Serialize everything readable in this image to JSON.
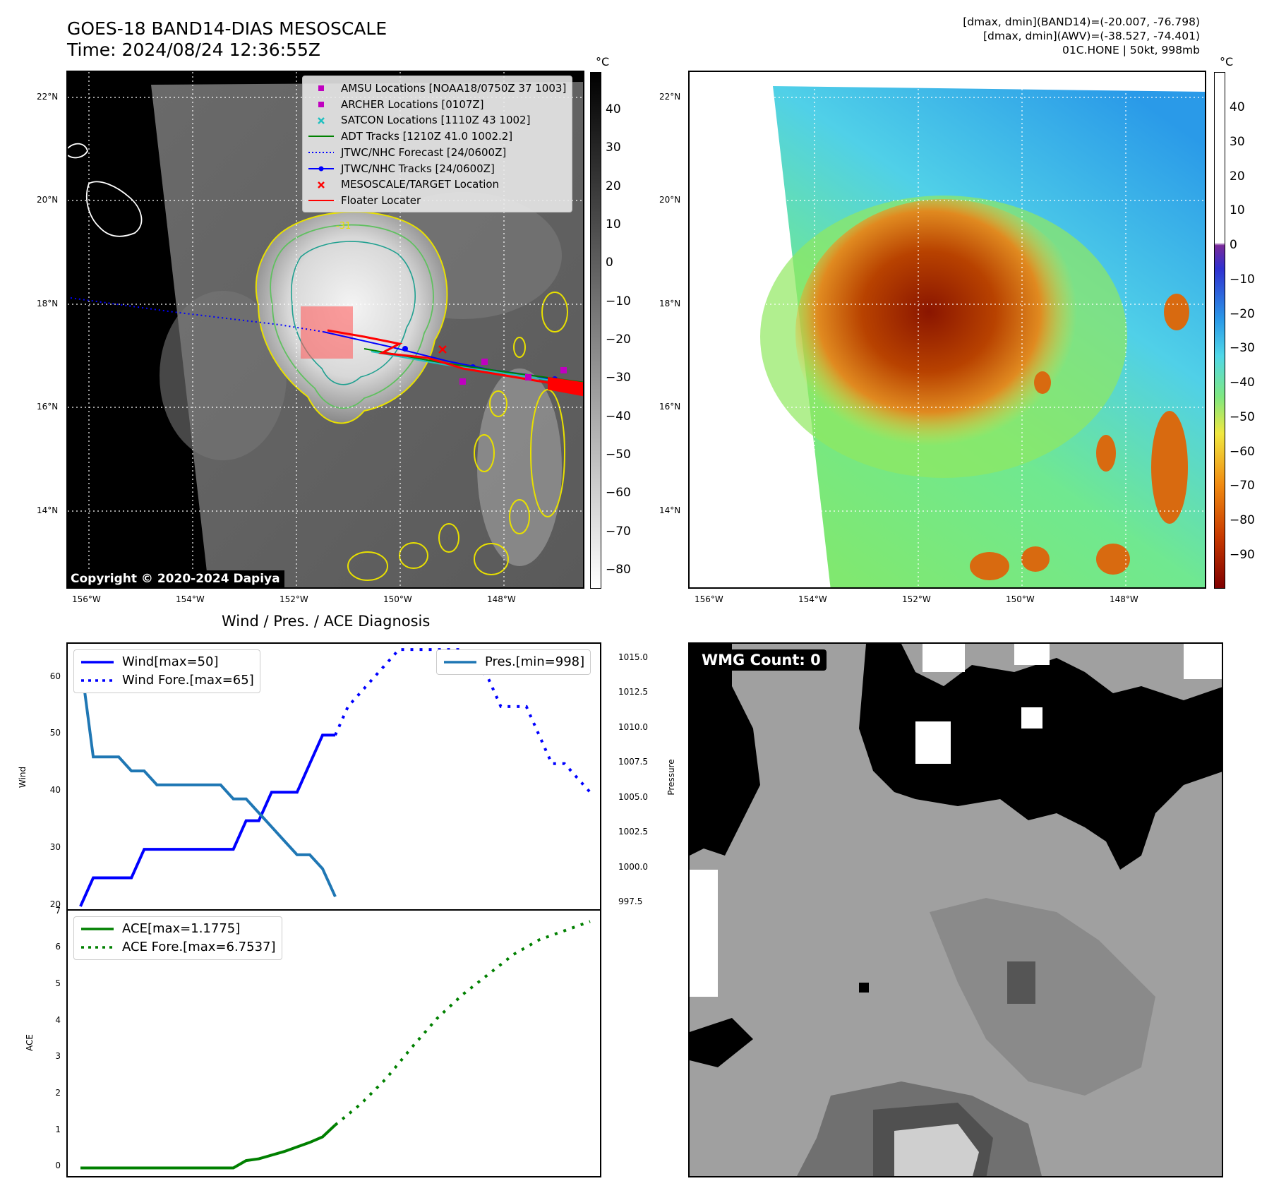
{
  "header": {
    "title_line1": "GOES-18 BAND14-DIAS MESOSCALE",
    "title_line2": "Time: 2024/08/24 12:36:55Z",
    "info_line1": "[dmax, dmin](BAND14)=(-20.007, -76.798)",
    "info_line2": "[dmax, dmin](AWV)=(-38.527, -74.401)",
    "info_line3": "01C.HONE | 50kt, 998mb"
  },
  "map_axes": {
    "lat_ticks": [
      "22°N",
      "20°N",
      "18°N",
      "16°N",
      "14°N"
    ],
    "lon_ticks": [
      "156°W",
      "154°W",
      "152°W",
      "150°W",
      "148°W"
    ]
  },
  "colorbar_left": {
    "unit": "°C",
    "ticks": [
      "40",
      "30",
      "20",
      "10",
      "0",
      "−10",
      "−20",
      "−30",
      "−40",
      "−50",
      "−60",
      "−70",
      "−80"
    ]
  },
  "colorbar_right": {
    "unit": "°C",
    "ticks": [
      "40",
      "30",
      "20",
      "10",
      "0",
      "−10",
      "−20",
      "−30",
      "−40",
      "−50",
      "−60",
      "−70",
      "−80",
      "−90"
    ]
  },
  "map_legend": {
    "items": [
      {
        "label": "AMSU Locations [NOAA18/0750Z 37 1003]",
        "color": "#c000c0",
        "marker": "square"
      },
      {
        "label": "ARCHER Locations [0107Z]",
        "color": "#c000c0",
        "marker": "square"
      },
      {
        "label": "SATCON Locations [1110Z 43 1002]",
        "color": "#20c0c0",
        "marker": "x"
      },
      {
        "label": "ADT Tracks [1210Z 41.0 1002.2]",
        "color": "#008000",
        "marker": "line"
      },
      {
        "label": "JTWC/NHC Forecast [24/0600Z]",
        "color": "#0000ff",
        "marker": "dotted"
      },
      {
        "label": "JTWC/NHC Tracks [24/0600Z]",
        "color": "#0000ff",
        "marker": "line-dot"
      },
      {
        "label": "MESOSCALE/TARGET Location",
        "color": "#ff0000",
        "marker": "x"
      },
      {
        "label": "Floater Locater",
        "color": "#ff0000",
        "marker": "line"
      }
    ]
  },
  "copyright": "Copyright © 2020-2024 Dapiya",
  "wmg_label": "WMG Count: 0",
  "chart_data": [
    {
      "type": "line",
      "title": "Wind / Pres. / ACE Diagnosis",
      "ylabel": "Wind",
      "ylabel_right": "Pressure",
      "ylim": [
        19,
        66
      ],
      "ylim_right": [
        996.9,
        1016.1
      ],
      "yticks": [
        "20",
        "30",
        "40",
        "50",
        "60"
      ],
      "yticks_right": [
        "997.5",
        "1000.0",
        "1002.5",
        "1005.0",
        "1007.5",
        "1010.0",
        "1012.5",
        "1015.0"
      ],
      "xlim": [
        -0.5,
        20.5
      ],
      "series": [
        {
          "name": "Wind[max=50]",
          "color": "#0000ff",
          "style": "solid",
          "x": [
            0,
            0.5,
            1,
            1.5,
            2,
            2.5,
            3,
            3.5,
            4,
            4.5,
            5,
            5.5,
            6,
            6.5,
            7,
            7.5,
            8,
            8.5,
            9,
            9.5,
            10
          ],
          "values": [
            20,
            25,
            25,
            25,
            25,
            30,
            30,
            30,
            30,
            30,
            30,
            30,
            30,
            35,
            35,
            40,
            40,
            40,
            45,
            50,
            50
          ]
        },
        {
          "name": "Wind Fore.[max=65]",
          "color": "#0000ff",
          "style": "dotted",
          "x": [
            10,
            10.5,
            11,
            11.5,
            12,
            12.5,
            13,
            13.5,
            14,
            14.5,
            15,
            15.5,
            16,
            16.5,
            17,
            17.5,
            18,
            18.5,
            19,
            19.5,
            20
          ],
          "values": [
            50,
            55,
            57.5,
            60,
            62.5,
            65,
            65,
            65,
            65,
            65,
            65,
            62.5,
            60,
            55,
            55,
            55,
            50,
            45,
            45,
            42.5,
            40
          ]
        },
        {
          "name": "Pres.[min=998]",
          "color": "#1f77b4",
          "style": "solid",
          "axis": "right",
          "x": [
            0,
            0.5,
            1,
            1.5,
            2,
            2.5,
            3,
            3.5,
            4,
            4.5,
            5,
            5.5,
            6,
            6.5,
            7,
            7.5,
            8,
            8.5,
            9,
            9.5,
            10
          ],
          "values": [
            1015,
            1008,
            1008,
            1008,
            1007,
            1007,
            1006,
            1006,
            1006,
            1006,
            1006,
            1006,
            1005,
            1005,
            1004,
            1003,
            1002,
            1001,
            1001,
            1000,
            998
          ]
        }
      ]
    },
    {
      "type": "line",
      "ylabel": "ACE",
      "ylim": [
        -0.3,
        7.05
      ],
      "yticks": [
        "0",
        "1",
        "2",
        "3",
        "4",
        "5",
        "6",
        "7"
      ],
      "xlim": [
        -0.5,
        20.5
      ],
      "series": [
        {
          "name": "ACE[max=1.1775]",
          "color": "#008000",
          "style": "solid",
          "x": [
            0,
            1,
            2,
            3,
            4,
            5,
            6,
            6.5,
            7,
            8,
            9,
            9.5,
            10
          ],
          "values": [
            0,
            0,
            0,
            0,
            0,
            0,
            0,
            0.2,
            0.25,
            0.45,
            0.7,
            0.85,
            1.1775
          ]
        },
        {
          "name": "ACE Fore.[max=6.7537]",
          "color": "#008000",
          "style": "dotted",
          "x": [
            10,
            11,
            12,
            13,
            14,
            15,
            16,
            17,
            18,
            19,
            20
          ],
          "values": [
            1.1775,
            1.75,
            2.45,
            3.3,
            4.1,
            4.75,
            5.3,
            5.85,
            6.25,
            6.5,
            6.7537
          ]
        }
      ]
    }
  ]
}
